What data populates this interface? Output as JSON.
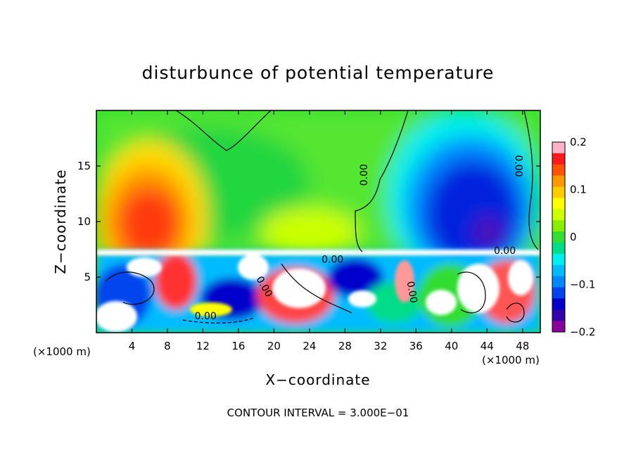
{
  "chart_data": {
    "type": "heatmap",
    "title": "disturbunce of potential temperature",
    "xlabel": "X−coordinate",
    "ylabel": "Z−coordinate",
    "x_unit_left": "(×1000 m)",
    "x_unit_right": "(×1000 m)",
    "xlim": [
      0,
      50
    ],
    "ylim": [
      0,
      20
    ],
    "x_ticks": [
      4,
      8,
      12,
      16,
      20,
      24,
      28,
      32,
      36,
      40,
      44,
      48
    ],
    "y_ticks": [
      5,
      10,
      15
    ],
    "colorbar": {
      "range": [
        -0.2,
        0.2
      ],
      "tick_labels": [
        "0.2",
        "0.1",
        "0",
        "−0.1",
        "−0.2"
      ],
      "tick_values": [
        0.2,
        0.1,
        0,
        -0.1,
        -0.2
      ],
      "colors": [
        "#ffb3c6",
        "#ff1a1a",
        "#ff5500",
        "#ff9900",
        "#ffcc00",
        "#ffff00",
        "#ccff00",
        "#88ee00",
        "#33dd33",
        "#00dd88",
        "#00eeee",
        "#00bbff",
        "#0088ff",
        "#0044ee",
        "#0000cc",
        "#3300aa",
        "#880099"
      ]
    },
    "contour_labels": [
      {
        "text": "0.00",
        "x": 30.5,
        "z": 14.2,
        "rotation": -90
      },
      {
        "text": "0.00",
        "x": 47.2,
        "z": 15.0,
        "rotation": 90
      },
      {
        "text": "0.00",
        "x": 26.6,
        "z": 6.3,
        "rotation": 0
      },
      {
        "text": "0.00",
        "x": 12.3,
        "z": 1.2,
        "rotation": 0
      },
      {
        "text": "0.00",
        "x": 46.0,
        "z": 7.1,
        "rotation": 0
      },
      {
        "text": "0.00",
        "x": 18.6,
        "z": 4.0,
        "rotation": 60
      },
      {
        "text": "0.00",
        "x": 35.2,
        "z": 3.6,
        "rotation": 80
      }
    ],
    "footer": "CONTOUR INTERVAL = 3.000E−01"
  }
}
